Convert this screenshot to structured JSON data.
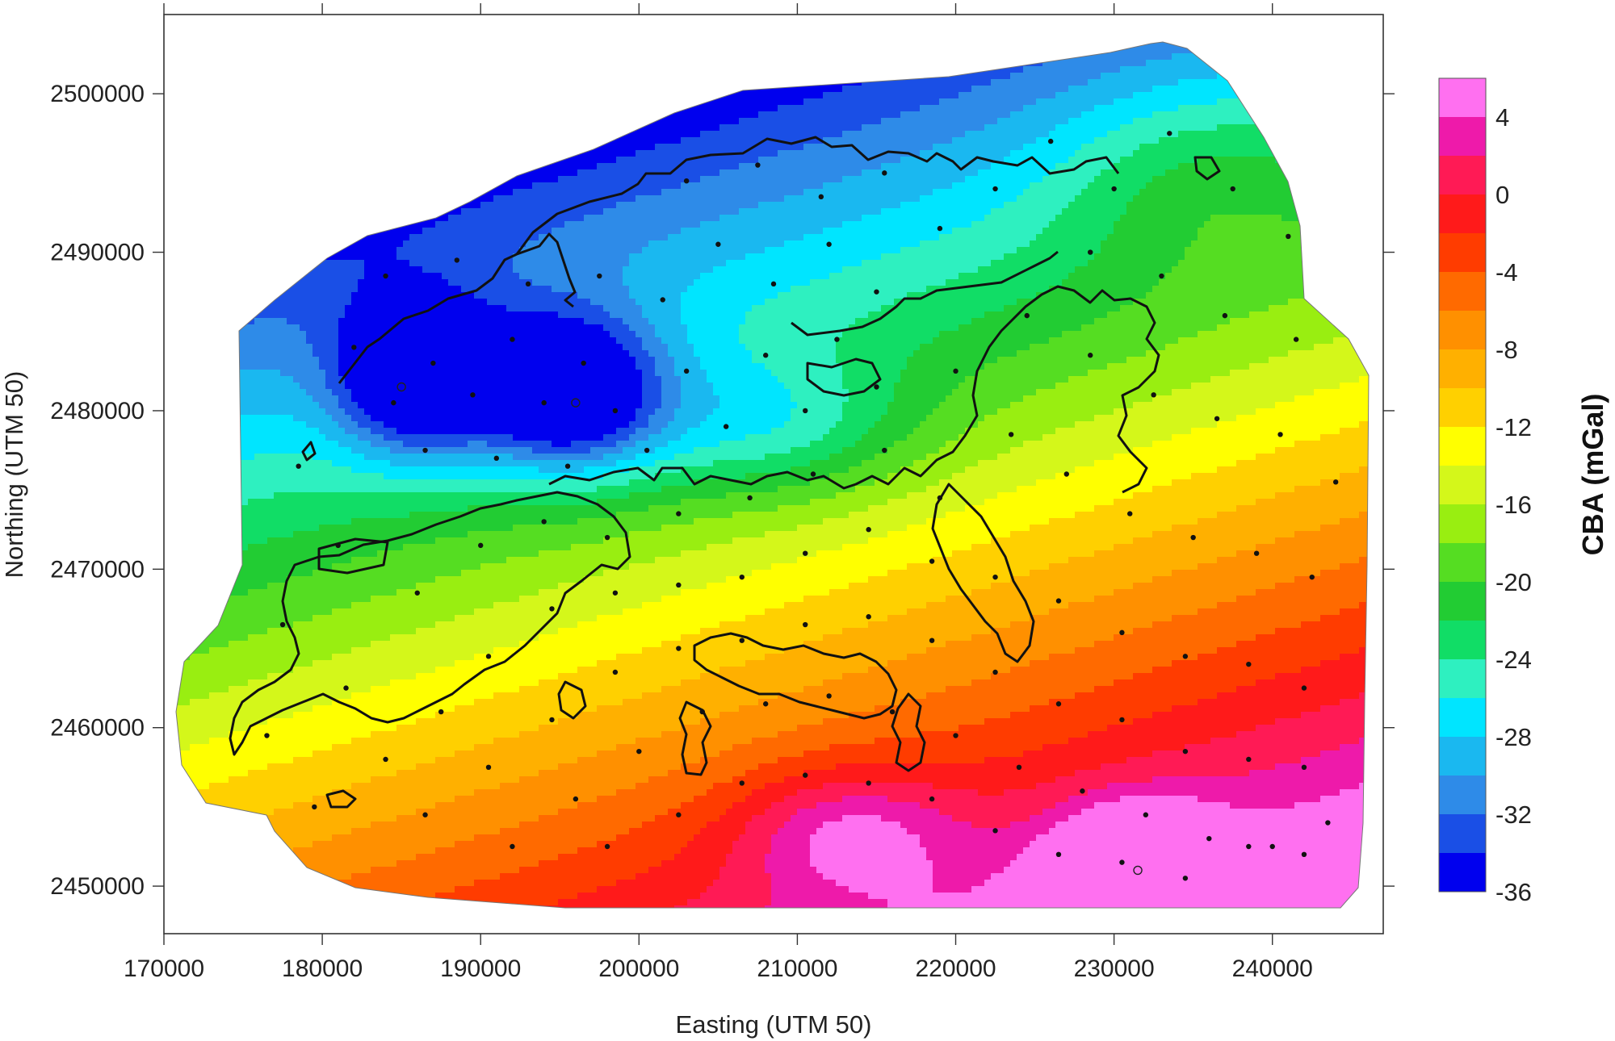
{
  "chart_data": {
    "type": "heatmap",
    "title": "",
    "xlabel": "Easting (UTM 50)",
    "ylabel": "Northing (UTM 50)",
    "xlim": [
      170000,
      247000
    ],
    "ylim": [
      2447000,
      2505000
    ],
    "x_ticks": [
      170000,
      180000,
      190000,
      200000,
      210000,
      220000,
      230000,
      240000
    ],
    "y_ticks": [
      2450000,
      2460000,
      2470000,
      2480000,
      2490000,
      2500000
    ],
    "x_tick_labels": [
      "170000",
      "180000",
      "190000",
      "200000",
      "210000",
      "220000",
      "230000",
      "240000"
    ],
    "y_tick_labels": [
      "2450000",
      "2460000",
      "2470000",
      "2480000",
      "2490000",
      "2500000"
    ],
    "grid": false,
    "colorbar": {
      "title": "CBA (mGal)",
      "placement": "right",
      "levels": [
        -36,
        -34,
        -32,
        -30,
        -28,
        -26,
        -24,
        -22,
        -20,
        -18,
        -16,
        -14,
        -12,
        -10,
        -8,
        -6,
        -4,
        -2,
        0,
        2,
        4,
        6
      ],
      "tick_values": [
        4,
        0,
        -4,
        -8,
        -12,
        -16,
        -20,
        -24,
        -28,
        -32,
        -36
      ],
      "tick_labels": [
        "4",
        "0",
        "-4",
        "-8",
        "-12",
        "-16",
        "-20",
        "-24",
        "-28",
        "-32",
        "-36"
      ],
      "colors": [
        "#0000ee",
        "#1a4fe6",
        "#2e8be8",
        "#1ab8f0",
        "#00e5ff",
        "#2ef0c0",
        "#11dd66",
        "#22cc33",
        "#55dd22",
        "#99ee11",
        "#d4f71a",
        "#ffff00",
        "#ffd000",
        "#ffb000",
        "#ff9000",
        "#ff6a00",
        "#ff3c00",
        "#ff1a1a",
        "#ff1a55",
        "#ee1aaa",
        "#ff70f0",
        "#ff99ff"
      ]
    },
    "anomaly_lows": [
      {
        "x": 185000,
        "y": 2481500,
        "value": -33
      },
      {
        "x": 196000,
        "y": 2480500,
        "value": -34
      }
    ],
    "anomaly_highs": [
      {
        "x": 231500,
        "y": 2451000,
        "value": 5
      }
    ],
    "stations": [
      [
        182000,
        2484000
      ],
      [
        184500,
        2480500
      ],
      [
        187000,
        2483000
      ],
      [
        189500,
        2481000
      ],
      [
        192000,
        2484500
      ],
      [
        194000,
        2480500
      ],
      [
        196500,
        2483000
      ],
      [
        198500,
        2480000
      ],
      [
        186500,
        2477500
      ],
      [
        191000,
        2477000
      ],
      [
        195500,
        2476500
      ],
      [
        200500,
        2477500
      ],
      [
        203000,
        2482500
      ],
      [
        205500,
        2479000
      ],
      [
        208000,
        2483500
      ],
      [
        210500,
        2480000
      ],
      [
        212500,
        2484500
      ],
      [
        215000,
        2481500
      ],
      [
        184000,
        2488500
      ],
      [
        188500,
        2489500
      ],
      [
        193000,
        2488000
      ],
      [
        197500,
        2488500
      ],
      [
        201500,
        2487000
      ],
      [
        205000,
        2490500
      ],
      [
        208500,
        2488000
      ],
      [
        212000,
        2490500
      ],
      [
        215000,
        2487500
      ],
      [
        203000,
        2494500
      ],
      [
        207500,
        2495500
      ],
      [
        211500,
        2493500
      ],
      [
        215500,
        2495000
      ],
      [
        219000,
        2491500
      ],
      [
        222500,
        2494000
      ],
      [
        226000,
        2497000
      ],
      [
        230000,
        2494000
      ],
      [
        233500,
        2497500
      ],
      [
        237500,
        2494000
      ],
      [
        241000,
        2491000
      ],
      [
        228500,
        2490000
      ],
      [
        233000,
        2488500
      ],
      [
        237000,
        2486000
      ],
      [
        241500,
        2484500
      ],
      [
        224500,
        2486000
      ],
      [
        228500,
        2483500
      ],
      [
        232500,
        2481000
      ],
      [
        236500,
        2479500
      ],
      [
        240500,
        2478500
      ],
      [
        244000,
        2475500
      ],
      [
        220000,
        2482500
      ],
      [
        223500,
        2478500
      ],
      [
        227000,
        2476000
      ],
      [
        231000,
        2473500
      ],
      [
        235000,
        2472000
      ],
      [
        239000,
        2471000
      ],
      [
        242500,
        2469500
      ],
      [
        178500,
        2476500
      ],
      [
        181000,
        2471500
      ],
      [
        177500,
        2466500
      ],
      [
        181500,
        2462500
      ],
      [
        176500,
        2459500
      ],
      [
        179500,
        2455000
      ],
      [
        184000,
        2458000
      ],
      [
        187500,
        2461000
      ],
      [
        190500,
        2464500
      ],
      [
        186000,
        2468500
      ],
      [
        190000,
        2471500
      ],
      [
        194000,
        2473000
      ],
      [
        198000,
        2472000
      ],
      [
        202500,
        2473500
      ],
      [
        207000,
        2474500
      ],
      [
        211000,
        2476000
      ],
      [
        215500,
        2477500
      ],
      [
        219000,
        2474500
      ],
      [
        194500,
        2467500
      ],
      [
        198500,
        2468500
      ],
      [
        202500,
        2469000
      ],
      [
        206500,
        2469500
      ],
      [
        210500,
        2471000
      ],
      [
        214500,
        2472500
      ],
      [
        218500,
        2470500
      ],
      [
        222500,
        2469500
      ],
      [
        226500,
        2468000
      ],
      [
        230500,
        2466000
      ],
      [
        234500,
        2464500
      ],
      [
        238500,
        2464000
      ],
      [
        242000,
        2462500
      ],
      [
        186500,
        2454500
      ],
      [
        190500,
        2457500
      ],
      [
        194500,
        2460500
      ],
      [
        198500,
        2463500
      ],
      [
        202500,
        2465000
      ],
      [
        206500,
        2465500
      ],
      [
        210500,
        2466500
      ],
      [
        214500,
        2467000
      ],
      [
        218500,
        2465500
      ],
      [
        222500,
        2463500
      ],
      [
        226500,
        2461500
      ],
      [
        230500,
        2460500
      ],
      [
        234500,
        2458500
      ],
      [
        238500,
        2458000
      ],
      [
        242000,
        2457500
      ],
      [
        192000,
        2452500
      ],
      [
        196000,
        2455500
      ],
      [
        200000,
        2458500
      ],
      [
        204000,
        2461000
      ],
      [
        208000,
        2461500
      ],
      [
        212000,
        2462000
      ],
      [
        216000,
        2461000
      ],
      [
        220000,
        2459500
      ],
      [
        224000,
        2457500
      ],
      [
        228000,
        2456000
      ],
      [
        232000,
        2454500
      ],
      [
        236000,
        2453000
      ],
      [
        240000,
        2452500
      ],
      [
        243500,
        2454000
      ],
      [
        198000,
        2452500
      ],
      [
        202500,
        2454500
      ],
      [
        206500,
        2456500
      ],
      [
        210500,
        2457000
      ],
      [
        214500,
        2456500
      ],
      [
        218500,
        2455500
      ],
      [
        222500,
        2453500
      ],
      [
        226500,
        2452000
      ],
      [
        230500,
        2451500
      ],
      [
        234500,
        2450500
      ],
      [
        238500,
        2452500
      ],
      [
        242000,
        2452000
      ]
    ]
  }
}
